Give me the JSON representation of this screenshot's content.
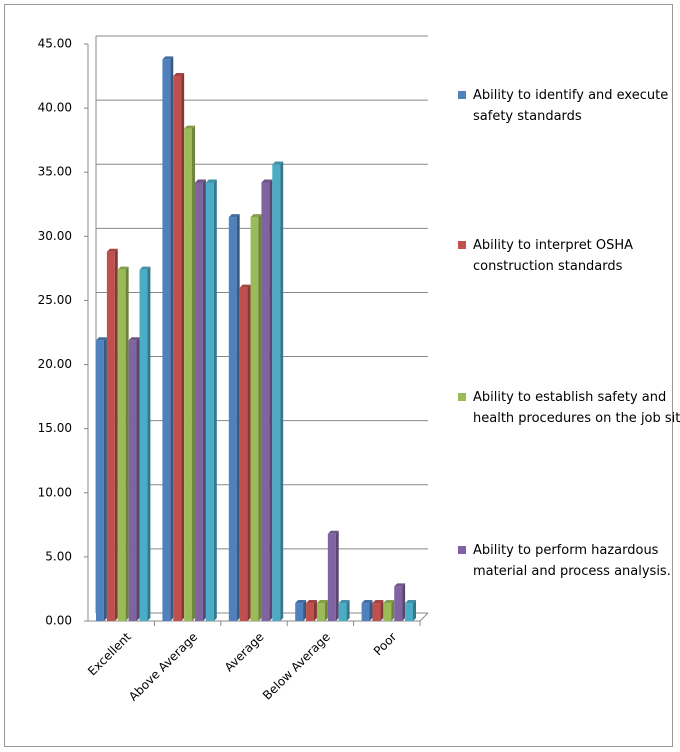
{
  "chart_data": {
    "type": "bar",
    "categories": [
      "Excellent",
      "Above Average",
      "Average",
      "Below Average",
      "Poor"
    ],
    "series": [
      {
        "name": "Ability to identify and execute safety standards",
        "color": "#4f81bd",
        "values": [
          21.9,
          43.8,
          31.5,
          1.4,
          1.4
        ]
      },
      {
        "name": "Ability to interpret OSHA construction standards",
        "color": "#c0504d",
        "values": [
          28.8,
          42.5,
          26.0,
          1.4,
          1.4
        ]
      },
      {
        "name": "Ability to establish safety and health procedures on the job site",
        "color": "#9bbb59",
        "values": [
          27.4,
          38.4,
          31.5,
          1.4,
          1.4
        ]
      },
      {
        "name": "Ability to perform hazardous material and process analysis.",
        "color": "#8064a2",
        "values": [
          21.9,
          34.2,
          34.2,
          6.8,
          2.7
        ]
      },
      {
        "color": "#4bacc6",
        "values": [
          27.4,
          34.2,
          35.6,
          1.4,
          1.4
        ]
      }
    ],
    "ylim": [
      0,
      45
    ],
    "yticks": [
      {
        "value": 0,
        "label": "0.00"
      },
      {
        "value": 5,
        "label": "5.00"
      },
      {
        "value": 10,
        "label": "10.00"
      },
      {
        "value": 15,
        "label": "15.00"
      },
      {
        "value": 20,
        "label": "20.00"
      },
      {
        "value": 25,
        "label": "25.00"
      },
      {
        "value": 30,
        "label": "30.00"
      },
      {
        "value": 35,
        "label": "35.00"
      },
      {
        "value": 40,
        "label": "40.00"
      },
      {
        "value": 45,
        "label": "45.00"
      }
    ],
    "grid": true
  }
}
